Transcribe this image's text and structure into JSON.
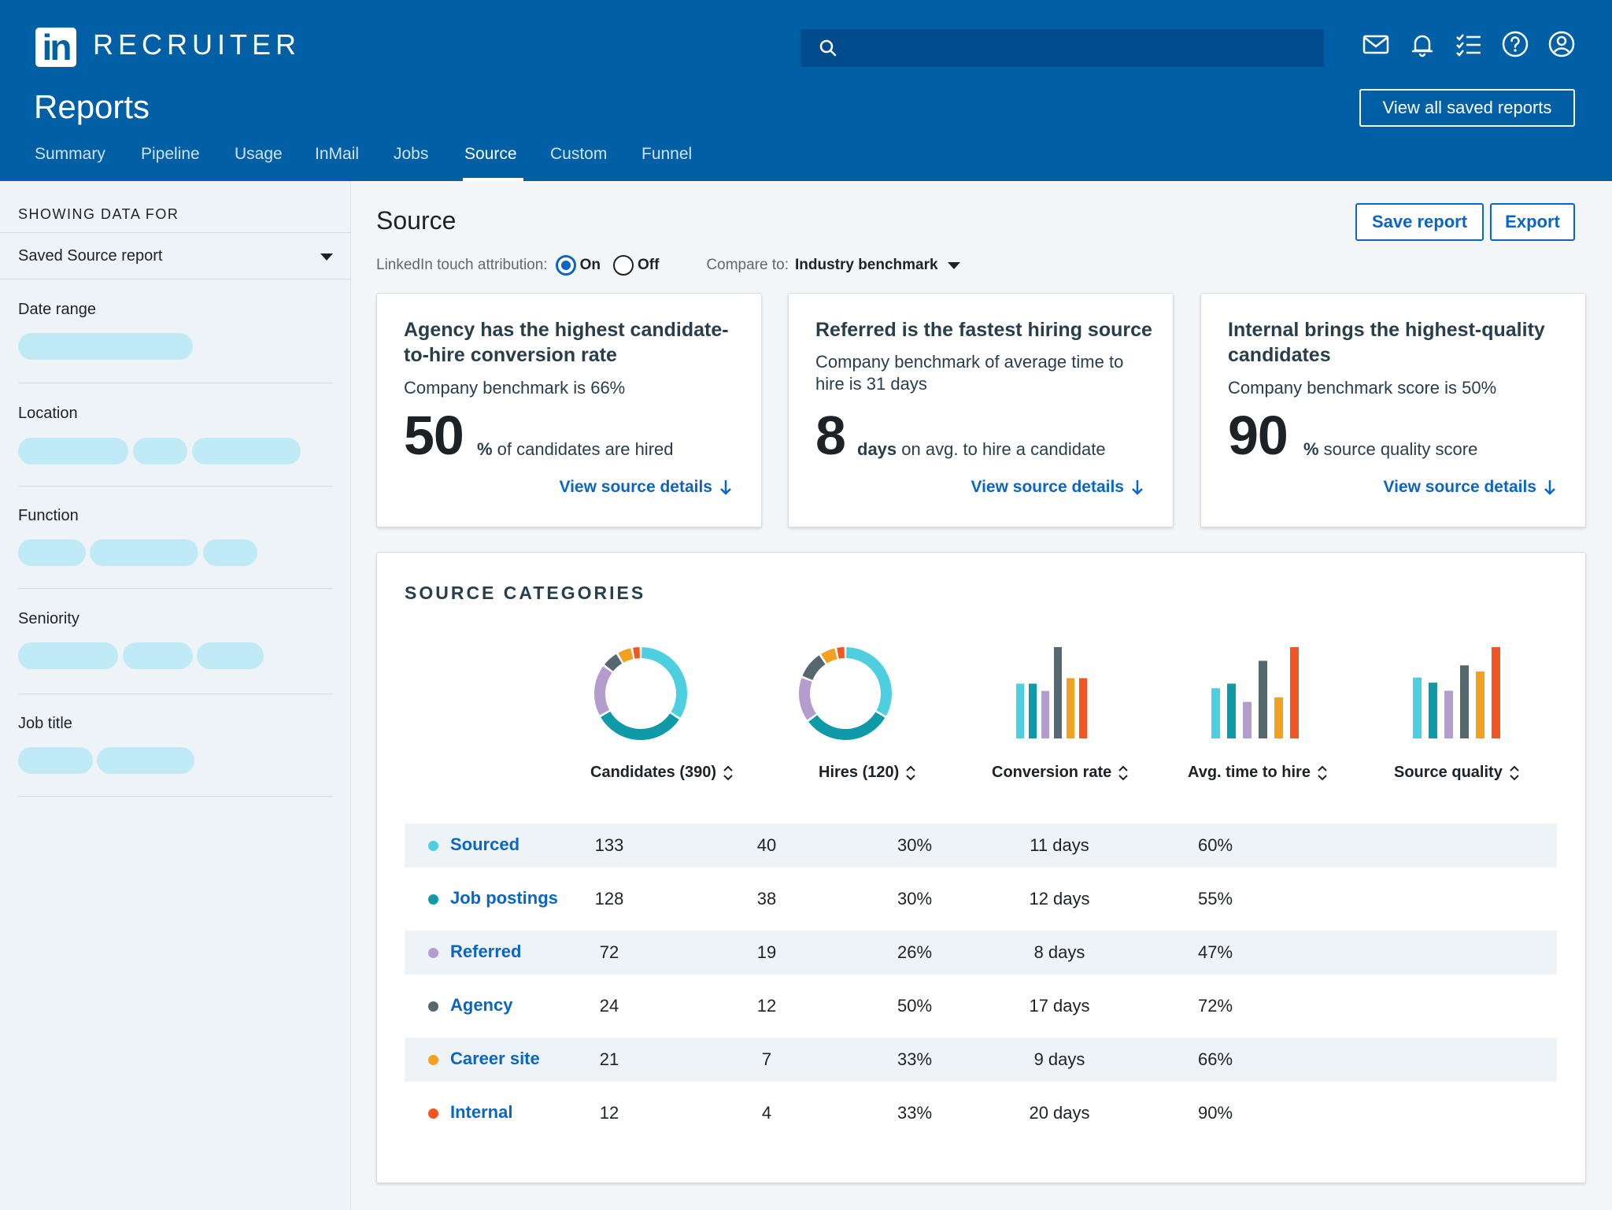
{
  "header": {
    "brand": "RECRUITER",
    "page_title": "Reports",
    "view_saved_label": "View all saved reports",
    "tabs": [
      {
        "label": "Summary"
      },
      {
        "label": "Pipeline"
      },
      {
        "label": "Usage"
      },
      {
        "label": "InMail"
      },
      {
        "label": "Jobs"
      },
      {
        "label": "Source",
        "active": true
      },
      {
        "label": "Custom"
      },
      {
        "label": "Funnel"
      }
    ],
    "icons": [
      "mail-icon",
      "bell-icon",
      "tasks-icon",
      "help-icon",
      "profile-icon"
    ]
  },
  "sidebar": {
    "showing_label": "SHOWING DATA FOR",
    "selected_report": "Saved Source report",
    "filters": [
      {
        "label": "Date range"
      },
      {
        "label": "Location"
      },
      {
        "label": "Function"
      },
      {
        "label": "Seniority"
      },
      {
        "label": "Job title"
      }
    ]
  },
  "main": {
    "title": "Source",
    "save_label": "Save report",
    "export_label": "Export",
    "attribution_label": "LinkedIn touch attribution:",
    "on_label": "On",
    "off_label": "Off",
    "attribution_value": "On",
    "compare_label": "Compare to:",
    "compare_value": "Industry benchmark"
  },
  "cards": [
    {
      "title": "Agency has the highest candidate-to-hire conversion rate",
      "benchmark": "Company benchmark is 66%",
      "value": "50",
      "unit_strong": "%",
      "unit_text": " of candidates are hired",
      "link": "View source details"
    },
    {
      "title": "Referred is the fastest hiring source",
      "benchmark": "Company benchmark of average time to hire is 31 days",
      "value": "8",
      "unit_strong": "days",
      "unit_text": " on avg. to hire a candidate",
      "link": "View source details"
    },
    {
      "title": "Internal brings the highest-quality candidates",
      "benchmark": "Company benchmark score is 50%",
      "value": "90",
      "unit_strong": "%",
      "unit_text": " source quality score",
      "link": "View source details"
    }
  ],
  "source_categories": {
    "title": "SOURCE CATEGORIES",
    "columns": [
      "Candidates (390)",
      "Hires (120)",
      "Conversion rate",
      "Avg. time to hire",
      "Source quality"
    ],
    "rows": [
      {
        "name": "Sourced",
        "color": "#4dcfe0",
        "candidates": "133",
        "hires": "40",
        "conversion": "30%",
        "time": "11 days",
        "quality": "60%"
      },
      {
        "name": "Job postings",
        "color": "#0e9aa7",
        "candidates": "128",
        "hires": "38",
        "conversion": "30%",
        "time": "12 days",
        "quality": "55%"
      },
      {
        "name": "Referred",
        "color": "#b49cce",
        "candidates": "72",
        "hires": "19",
        "conversion": "26%",
        "time": "8 days",
        "quality": "47%"
      },
      {
        "name": "Agency",
        "color": "#56686f",
        "candidates": "24",
        "hires": "12",
        "conversion": "50%",
        "time": "17 days",
        "quality": "72%"
      },
      {
        "name": "Career site",
        "color": "#f2a01f",
        "candidates": "21",
        "hires": "7",
        "conversion": "33%",
        "time": "9 days",
        "quality": "66%"
      },
      {
        "name": "Internal",
        "color": "#f35523",
        "candidates": "12",
        "hires": "4",
        "conversion": "33%",
        "time": "20 days",
        "quality": "90%"
      }
    ]
  },
  "chart_data": [
    {
      "type": "pie",
      "categories": [
        "Sourced",
        "Job postings",
        "Referred",
        "Agency",
        "Career site",
        "Internal"
      ],
      "values": [
        133,
        128,
        72,
        24,
        21,
        12
      ]
    },
    {
      "type": "pie",
      "categories": [
        "Sourced",
        "Job postings",
        "Referred",
        "Agency",
        "Career site",
        "Internal"
      ],
      "values": [
        40,
        38,
        19,
        12,
        7,
        4
      ]
    },
    {
      "type": "bar",
      "categories": [
        "Sourced",
        "Job postings",
        "Referred",
        "Agency",
        "Career site",
        "Internal"
      ],
      "values": [
        30,
        30,
        26,
        50,
        33,
        33
      ]
    },
    {
      "type": "bar",
      "categories": [
        "Sourced",
        "Job postings",
        "Referred",
        "Agency",
        "Career site",
        "Internal"
      ],
      "values": [
        11,
        12,
        8,
        17,
        9,
        20
      ]
    },
    {
      "type": "bar",
      "categories": [
        "Sourced",
        "Job postings",
        "Referred",
        "Agency",
        "Career site",
        "Internal"
      ],
      "values": [
        60,
        55,
        47,
        72,
        66,
        90
      ]
    }
  ]
}
